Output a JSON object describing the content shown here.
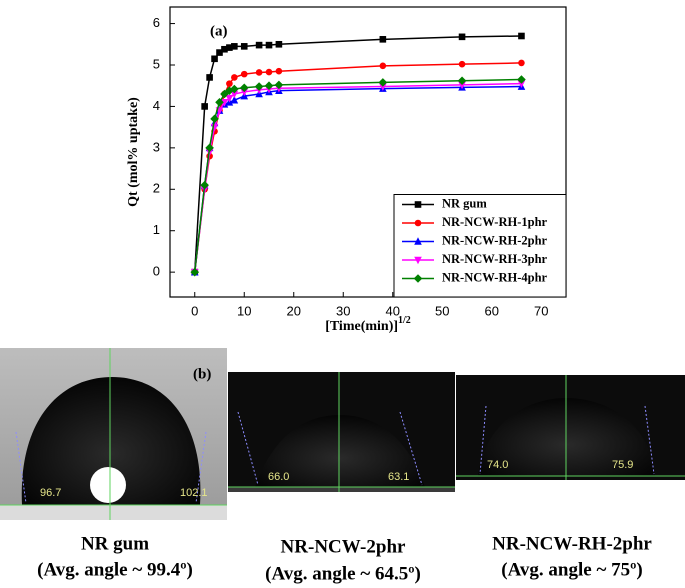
{
  "chart_data": {
    "type": "line",
    "annotation": "(a)",
    "ylabel": "Qt  (mol% uptake)",
    "xlabel": "[Time(min)]",
    "xlabel_superscript": "1/2",
    "xlim": [
      -5,
      75
    ],
    "xticks": [
      0,
      10,
      20,
      30,
      40,
      50,
      60,
      70
    ],
    "ylim": [
      -0.6,
      6.4
    ],
    "yticks": [
      0,
      1,
      2,
      3,
      4,
      5,
      6
    ],
    "legend": "lower right",
    "x": [
      0,
      2,
      3,
      4,
      5,
      6,
      7,
      8,
      10,
      13,
      15,
      17,
      38,
      54,
      66
    ],
    "series": [
      {
        "name": "NR gum",
        "color": "#000000",
        "marker": "square",
        "values": [
          0,
          4.0,
          4.7,
          5.15,
          5.3,
          5.38,
          5.42,
          5.45,
          5.45,
          5.48,
          5.48,
          5.5,
          5.62,
          5.68,
          5.7
        ]
      },
      {
        "name": "NR-NCW-RH-1phr",
        "color": "#ff0000",
        "marker": "circle",
        "values": [
          0,
          2.0,
          2.8,
          3.4,
          3.9,
          4.3,
          4.55,
          4.7,
          4.78,
          4.82,
          4.83,
          4.85,
          4.98,
          5.02,
          5.05
        ]
      },
      {
        "name": "NR-NCW-RH-2phr",
        "color": "#0000ff",
        "marker": "triangle-up",
        "values": [
          0,
          2.1,
          3.0,
          3.6,
          3.9,
          4.05,
          4.1,
          4.15,
          4.25,
          4.3,
          4.35,
          4.38,
          4.43,
          4.46,
          4.48
        ]
      },
      {
        "name": "NR-NCW-RH-3phr",
        "color": "#ff00ff",
        "marker": "triangle-down",
        "values": [
          0,
          2.0,
          2.9,
          3.5,
          3.9,
          4.1,
          4.2,
          4.3,
          4.35,
          4.4,
          4.42,
          4.44,
          4.48,
          4.52,
          4.55
        ]
      },
      {
        "name": "NR-NCW-RH-4phr",
        "color": "#008000",
        "marker": "diamond",
        "values": [
          0,
          2.1,
          3.0,
          3.7,
          4.1,
          4.3,
          4.38,
          4.42,
          4.45,
          4.48,
          4.5,
          4.52,
          4.58,
          4.62,
          4.65
        ]
      }
    ]
  },
  "panel_b": {
    "label": "(b)",
    "images": [
      {
        "left_angle": "96.7",
        "right_angle": "102.1",
        "caption": "NR gum",
        "subcaption": "(Avg. angle ~ 99.4º)"
      },
      {
        "left_angle": "66.0",
        "right_angle": "63.1",
        "caption": "NR-NCW-2phr",
        "subcaption": "(Avg. angle ~ 64.5º)"
      },
      {
        "left_angle": "74.0",
        "right_angle": "75.9",
        "caption": "NR-NCW-RH-2phr",
        "subcaption": "(Avg. angle ~ 75º)"
      }
    ]
  }
}
